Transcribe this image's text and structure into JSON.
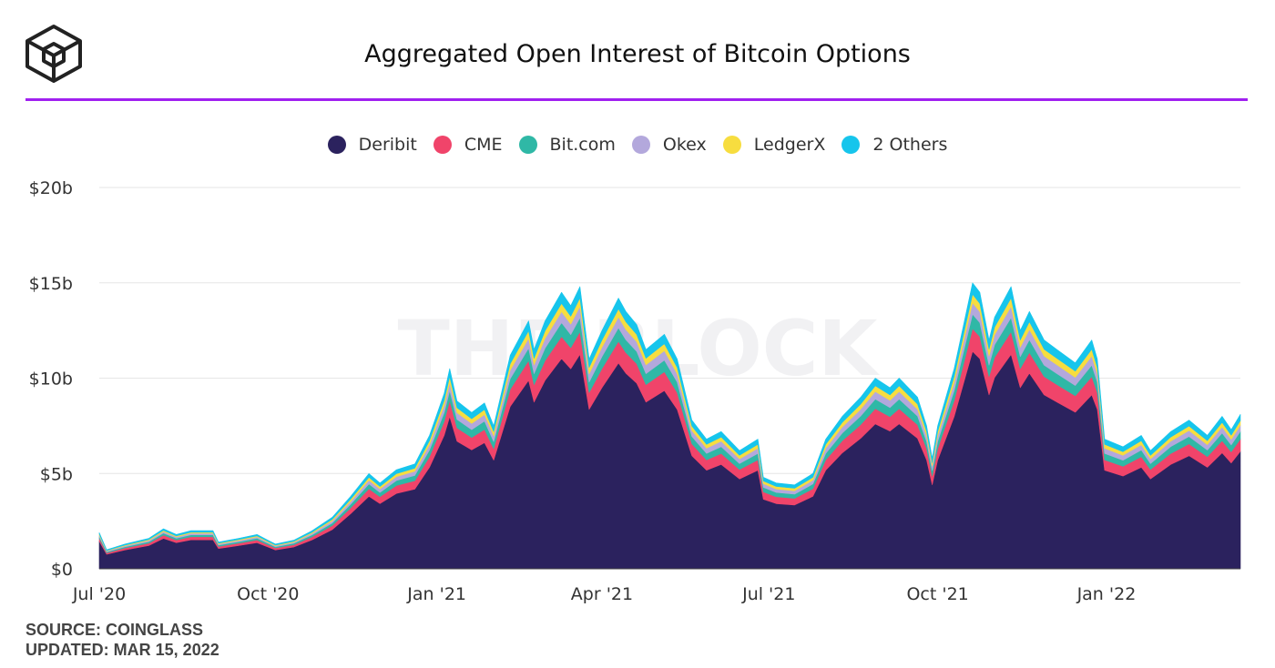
{
  "header": {
    "title": "Aggregated Open Interest of Bitcoin Options",
    "logo_icon": "the-block-cube-logo",
    "accent_color": "#a020f0"
  },
  "watermark": "THE BLOCK",
  "footer": {
    "source": "SOURCE: COINGLASS",
    "updated": "UPDATED: MAR 15, 2022"
  },
  "chart_data": {
    "type": "area",
    "stacked": true,
    "title": "Aggregated Open Interest of Bitcoin Options",
    "xlabel": "",
    "ylabel": "",
    "y_ticks": [
      "$0",
      "$5b",
      "$10b",
      "$15b",
      "$20b"
    ],
    "ylim": [
      0,
      20
    ],
    "x_ticks": [
      "Jul '20",
      "Oct '20",
      "Jan '21",
      "Apr '21",
      "Jul '21",
      "Oct '21",
      "Jan '22"
    ],
    "x_tick_dates": [
      "2020-07-01",
      "2020-10-01",
      "2021-01-01",
      "2021-04-01",
      "2021-07-01",
      "2021-10-01",
      "2022-01-01"
    ],
    "xlim": [
      "2020-07-01",
      "2022-03-15"
    ],
    "grid": true,
    "legend_position": "top-center",
    "series": [
      {
        "name": "Deribit",
        "color": "#2b225e"
      },
      {
        "name": "CME",
        "color": "#f0446a"
      },
      {
        "name": "Bit.com",
        "color": "#2fb8a6"
      },
      {
        "name": "Okex",
        "color": "#b3a8dc"
      },
      {
        "name": "LedgerX",
        "color": "#f7dd3f"
      },
      {
        "name": "2 Others",
        "color": "#16c5ec"
      }
    ],
    "x": [
      "2020-07-01",
      "2020-07-05",
      "2020-07-15",
      "2020-07-28",
      "2020-08-05",
      "2020-08-12",
      "2020-08-20",
      "2020-09-01",
      "2020-09-04",
      "2020-09-15",
      "2020-09-25",
      "2020-10-01",
      "2020-10-05",
      "2020-10-15",
      "2020-10-25",
      "2020-11-05",
      "2020-11-15",
      "2020-11-25",
      "2020-12-01",
      "2020-12-10",
      "2020-12-20",
      "2020-12-28",
      "2021-01-05",
      "2021-01-08",
      "2021-01-12",
      "2021-01-20",
      "2021-01-27",
      "2021-02-01",
      "2021-02-10",
      "2021-02-20",
      "2021-02-23",
      "2021-03-01",
      "2021-03-10",
      "2021-03-15",
      "2021-03-20",
      "2021-03-25",
      "2021-04-01",
      "2021-04-10",
      "2021-04-14",
      "2021-04-20",
      "2021-04-25",
      "2021-05-05",
      "2021-05-12",
      "2021-05-20",
      "2021-05-28",
      "2021-06-05",
      "2021-06-15",
      "2021-06-25",
      "2021-06-28",
      "2021-07-05",
      "2021-07-15",
      "2021-07-25",
      "2021-08-01",
      "2021-08-10",
      "2021-08-20",
      "2021-08-28",
      "2021-09-05",
      "2021-09-10",
      "2021-09-20",
      "2021-09-25",
      "2021-09-28",
      "2021-10-01",
      "2021-10-10",
      "2021-10-20",
      "2021-10-24",
      "2021-10-29",
      "2021-11-01",
      "2021-11-10",
      "2021-11-15",
      "2021-11-20",
      "2021-11-28",
      "2021-12-05",
      "2021-12-15",
      "2021-12-24",
      "2021-12-27",
      "2021-12-31",
      "2022-01-10",
      "2022-01-20",
      "2022-01-25",
      "2022-02-05",
      "2022-02-15",
      "2022-02-25",
      "2022-03-05",
      "2022-03-10",
      "2022-03-15"
    ],
    "total": [
      1.9,
      1.0,
      1.3,
      1.6,
      2.1,
      1.8,
      2.0,
      2.0,
      1.4,
      1.6,
      1.8,
      1.5,
      1.3,
      1.5,
      2.0,
      2.7,
      3.8,
      5.0,
      4.5,
      5.2,
      5.5,
      7.0,
      9.2,
      10.5,
      8.8,
      8.2,
      8.7,
      7.5,
      11.2,
      13.0,
      11.5,
      13.0,
      14.5,
      13.8,
      14.8,
      11.0,
      12.5,
      14.2,
      13.5,
      12.8,
      11.5,
      12.3,
      11.0,
      7.8,
      6.8,
      7.2,
      6.2,
      6.8,
      4.8,
      4.5,
      4.4,
      5.0,
      6.8,
      8.0,
      9.0,
      10.0,
      9.5,
      10.0,
      9.0,
      7.5,
      5.8,
      7.5,
      10.5,
      15.0,
      14.5,
      12.0,
      13.2,
      14.8,
      12.5,
      13.5,
      12.0,
      11.5,
      10.8,
      12.0,
      11.0,
      6.8,
      6.4,
      7.0,
      6.2,
      7.2,
      7.8,
      7.0,
      8.0,
      7.3,
      8.1
    ],
    "segments": [
      0.76,
      0.08,
      0.05,
      0.04,
      0.03,
      0.04
    ]
  }
}
